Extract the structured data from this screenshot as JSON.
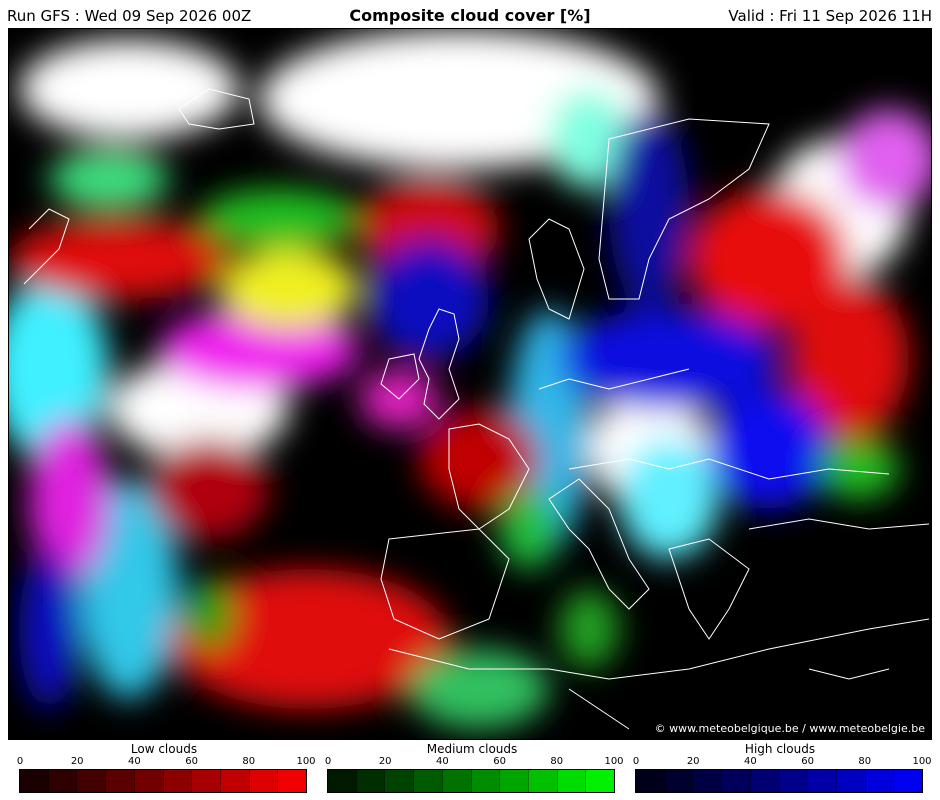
{
  "header": {
    "run": "Run GFS : Wed 09 Sep 2026 00Z",
    "title": "Composite cloud cover [%]",
    "valid": "Valid : Fri 11 Sep 2026 11H"
  },
  "map": {
    "copyright": "© www.meteobelgique.be / www.meteobelgie.be"
  },
  "legends": [
    {
      "title": "Low clouds",
      "ticks": [
        "0",
        "20",
        "40",
        "60",
        "80",
        "100"
      ],
      "colors": [
        "#1a0000",
        "#2e0000",
        "#420000",
        "#5a0000",
        "#720000",
        "#8c0000",
        "#a60000",
        "#c00000",
        "#dc0000",
        "#f00000"
      ]
    },
    {
      "title": "Medium clouds",
      "ticks": [
        "0",
        "20",
        "40",
        "60",
        "80",
        "100"
      ],
      "colors": [
        "#001a00",
        "#002e00",
        "#004200",
        "#005a00",
        "#007200",
        "#008c00",
        "#00a600",
        "#00c000",
        "#00dc00",
        "#00f000"
      ]
    },
    {
      "title": "High clouds",
      "ticks": [
        "0",
        "20",
        "40",
        "60",
        "80",
        "100"
      ],
      "colors": [
        "#00001a",
        "#00002e",
        "#000042",
        "#00005a",
        "#000072",
        "#00008c",
        "#0000a6",
        "#0000c0",
        "#0000dc",
        "#0000f0"
      ]
    }
  ]
}
